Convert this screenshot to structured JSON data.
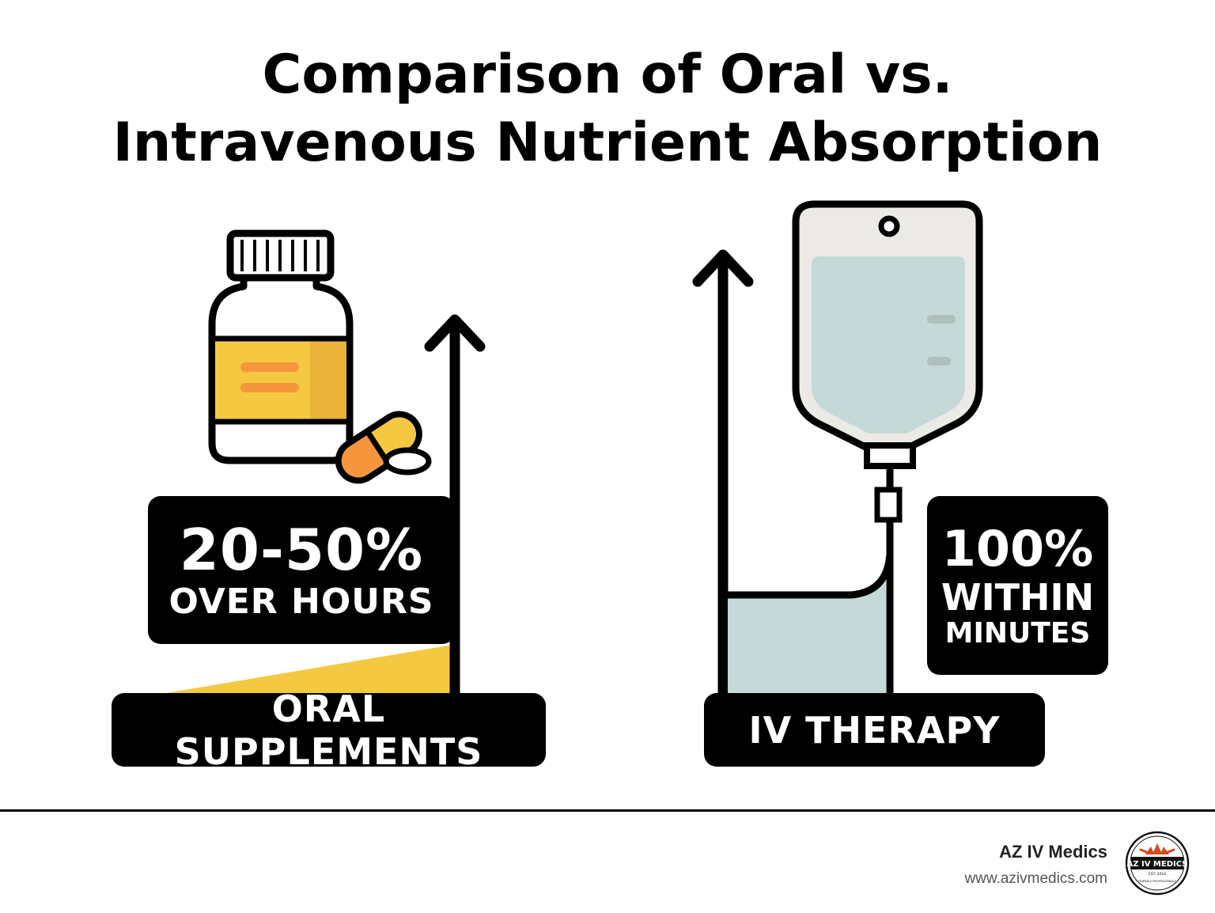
{
  "title": {
    "line1": "Comparison of Oral vs.",
    "line2": "Intravenous Nutrient Absorption"
  },
  "oral": {
    "stat_value": "20-50%",
    "stat_caption": "OVER HOURS",
    "label": "ORAL SUPPLEMENTS",
    "icons": [
      "pill-bottle-icon",
      "capsule-icon",
      "tablet-icon",
      "up-arrow-icon"
    ],
    "accent_color": "#f5c842"
  },
  "iv": {
    "stat_value": "100%",
    "stat_caption_line1": "WITHIN",
    "stat_caption_line2": "MINUTES",
    "label": "IV THERAPY",
    "icons": [
      "iv-bag-icon",
      "up-arrow-icon"
    ],
    "accent_color": "#c4d9d8"
  },
  "footer": {
    "brand_name": "AZ IV Medics",
    "brand_url": "www.azivmedics.com",
    "logo": {
      "text": "AZ IV MEDICS",
      "est": "EST. 2016",
      "tagline": "FRIENDLY PROFESSIONALS"
    }
  }
}
